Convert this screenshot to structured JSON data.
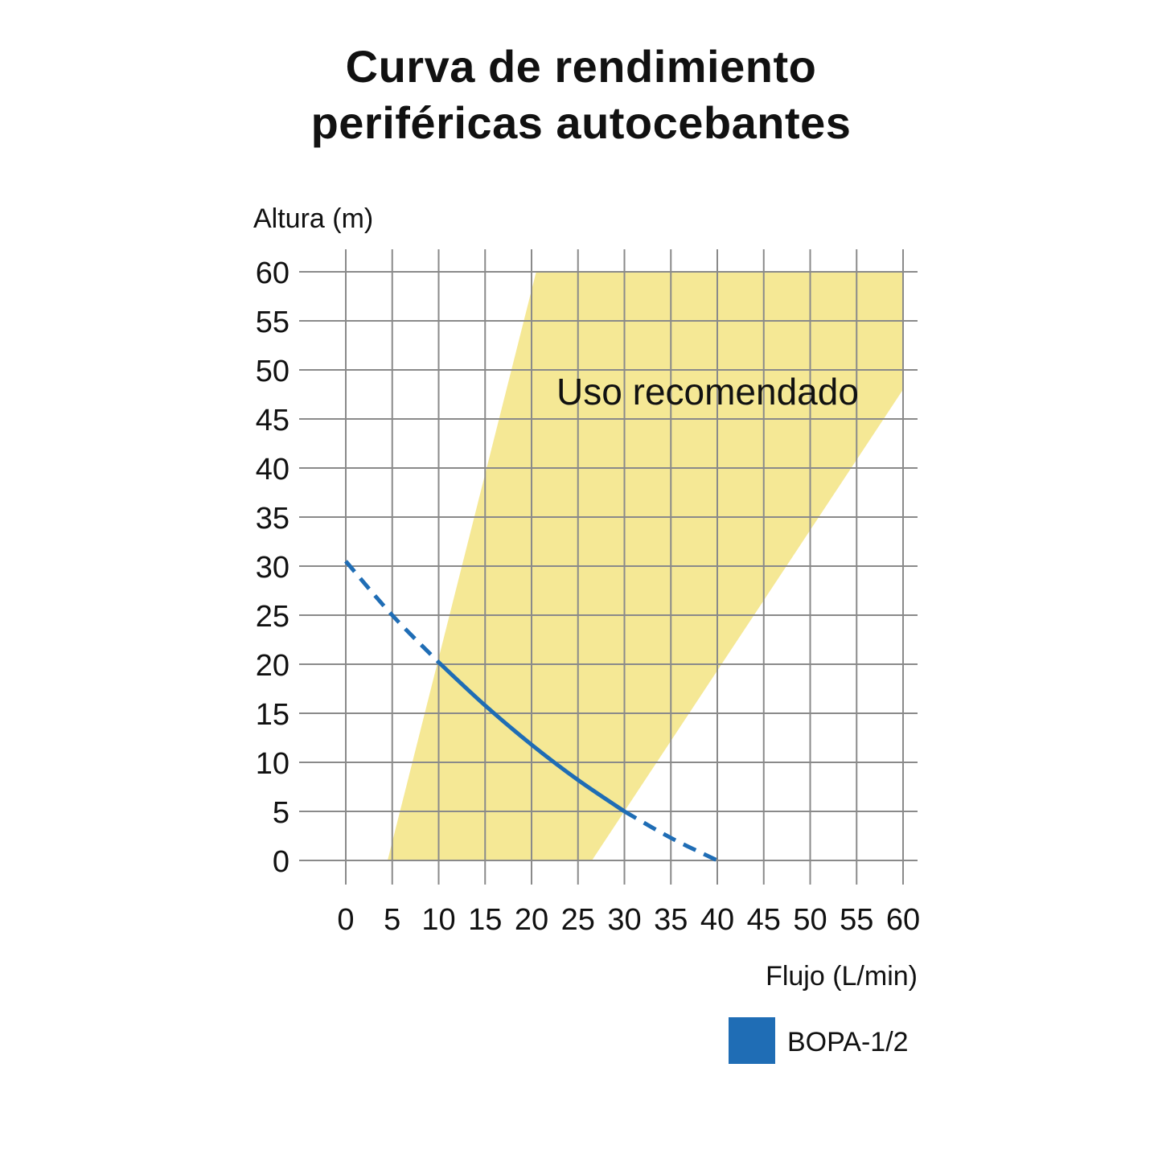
{
  "title_lines": [
    "Curva de rendimiento",
    "periféricas autocebantes"
  ],
  "chart_data": {
    "type": "line",
    "ylabel": "Altura (m)",
    "xlabel": "Flujo (L/min)",
    "xlim": [
      0,
      60
    ],
    "ylim": [
      0,
      60
    ],
    "x_ticks": [
      0,
      5,
      10,
      15,
      20,
      25,
      30,
      35,
      40,
      45,
      50,
      55,
      60
    ],
    "y_ticks": [
      0,
      5,
      10,
      15,
      20,
      25,
      30,
      35,
      40,
      45,
      50,
      55,
      60
    ],
    "grid": true,
    "recommended_zone": {
      "label": "Uso recomendado",
      "color": "#f5e895",
      "polygon": [
        [
          4.5,
          0
        ],
        [
          20.5,
          60
        ],
        [
          60,
          60
        ],
        [
          60,
          48
        ],
        [
          26.5,
          0
        ]
      ]
    },
    "series": [
      {
        "name": "BOPA-1/2",
        "color": "#1f6db5",
        "points": [
          [
            0,
            30.5
          ],
          [
            5,
            25
          ],
          [
            10,
            20.2
          ],
          [
            15,
            15.8
          ],
          [
            20,
            11.8
          ],
          [
            25,
            8.2
          ],
          [
            30,
            5
          ],
          [
            35,
            2.3
          ],
          [
            40,
            0
          ]
        ],
        "solid_range": [
          10,
          30
        ]
      }
    ],
    "legend": "bottom-right"
  }
}
